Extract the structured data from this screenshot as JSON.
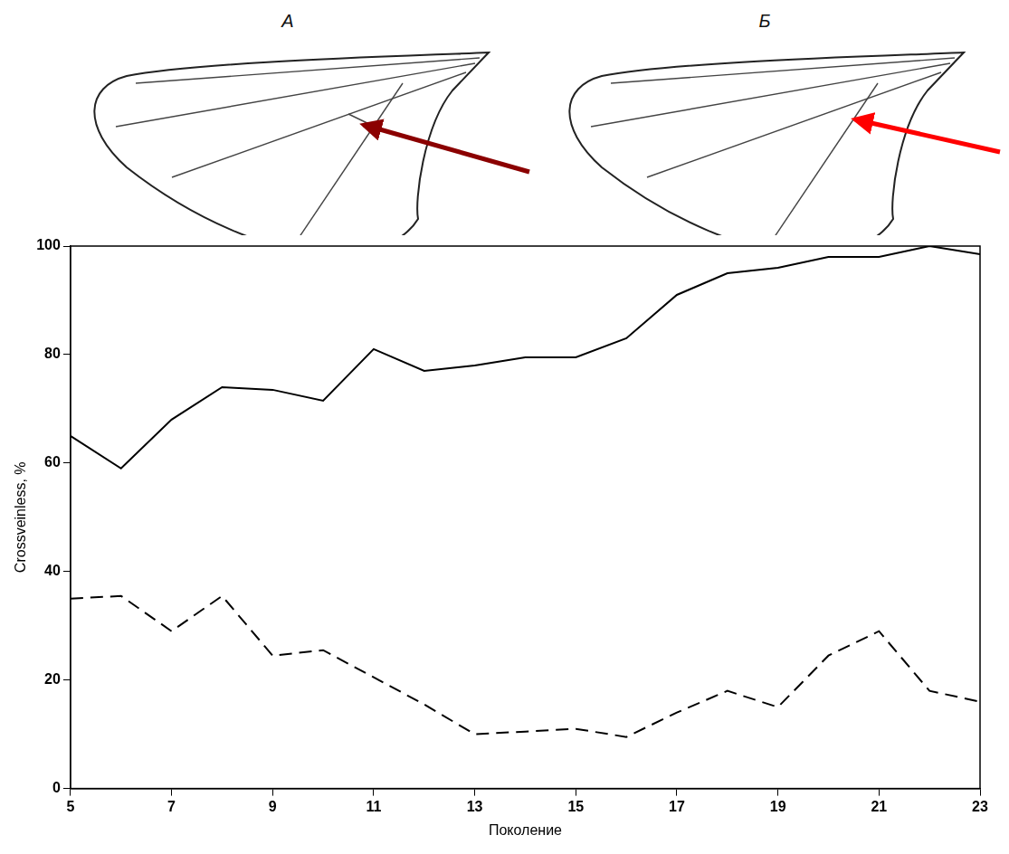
{
  "panels": [
    {
      "label": "A"
    },
    {
      "label": "Б"
    }
  ],
  "chart_data": {
    "type": "line",
    "xlabel": "Поколение",
    "ylabel": "Crossveinless, %",
    "x": [
      5,
      6,
      7,
      8,
      9,
      10,
      11,
      12,
      13,
      14,
      15,
      16,
      17,
      18,
      19,
      20,
      21,
      22,
      23
    ],
    "series": [
      {
        "color": "#000000",
        "line_style": "solid",
        "values": [
          65,
          59,
          68,
          74,
          73.5,
          71.5,
          81,
          77,
          78,
          79.5,
          79.5,
          83,
          91,
          95,
          96,
          98,
          98,
          100,
          98.5
        ]
      },
      {
        "color": "#000000",
        "line_style": "dashed",
        "values": [
          35,
          35.5,
          29,
          35.5,
          24.5,
          25.5,
          20.5,
          15.5,
          10,
          10.5,
          11,
          9.5,
          14,
          18,
          15,
          24.5,
          29,
          18,
          16
        ]
      }
    ],
    "marker": "none",
    "xlim": [
      5,
      23
    ],
    "ylim": [
      0,
      100
    ],
    "xticks": [
      5,
      7,
      9,
      11,
      13,
      15,
      17,
      19,
      21,
      23
    ],
    "yticks": [
      0,
      20,
      40,
      60,
      80,
      100
    ],
    "grid": false
  }
}
